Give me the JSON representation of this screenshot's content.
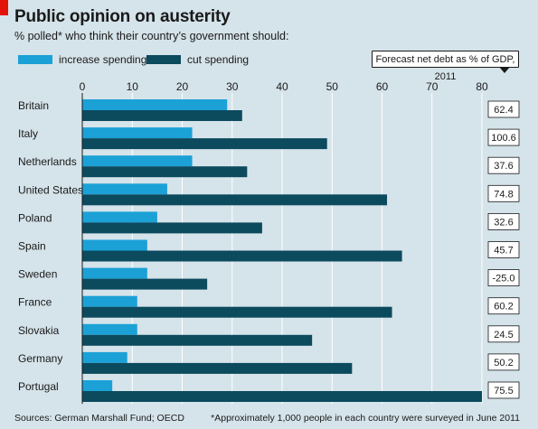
{
  "header": {
    "title": "Public opinion on austerity",
    "subtitle": "% polled* who think their country’s government should:"
  },
  "legend": {
    "increase": "increase spending",
    "cut": "cut spending",
    "debt_header": "Forecast net debt as % of GDP, 2011"
  },
  "colors": {
    "increase": "#1ba1d6",
    "cut": "#0c4a5e",
    "background": "#d5e3ea",
    "grid": "#ffffff"
  },
  "chart_data": {
    "type": "bar",
    "orientation": "horizontal",
    "categories": [
      "Britain",
      "Italy",
      "Netherlands",
      "United States",
      "Poland",
      "Spain",
      "Sweden",
      "France",
      "Slovakia",
      "Germany",
      "Portugal"
    ],
    "series": [
      {
        "name": "increase spending",
        "values": [
          29,
          22,
          22,
          17,
          15,
          13,
          13,
          11,
          11,
          9,
          6
        ]
      },
      {
        "name": "cut spending",
        "values": [
          32,
          49,
          33,
          61,
          36,
          64,
          25,
          62,
          46,
          54,
          80
        ]
      }
    ],
    "debt_values": [
      "62.4",
      "100.6",
      "37.6",
      "74.8",
      "32.6",
      "45.7",
      "-25.0",
      "60.2",
      "24.5",
      "50.2",
      "75.5"
    ],
    "xlim": [
      0,
      80
    ],
    "xticks": [
      0,
      10,
      20,
      30,
      40,
      50,
      60,
      70,
      80
    ],
    "grid": true,
    "legend_position": "top-left"
  },
  "footer": {
    "sources": "Sources: German Marshall Fund; OECD",
    "footnote": "*Approximately 1,000 people in each country were surveyed in June 2011"
  }
}
